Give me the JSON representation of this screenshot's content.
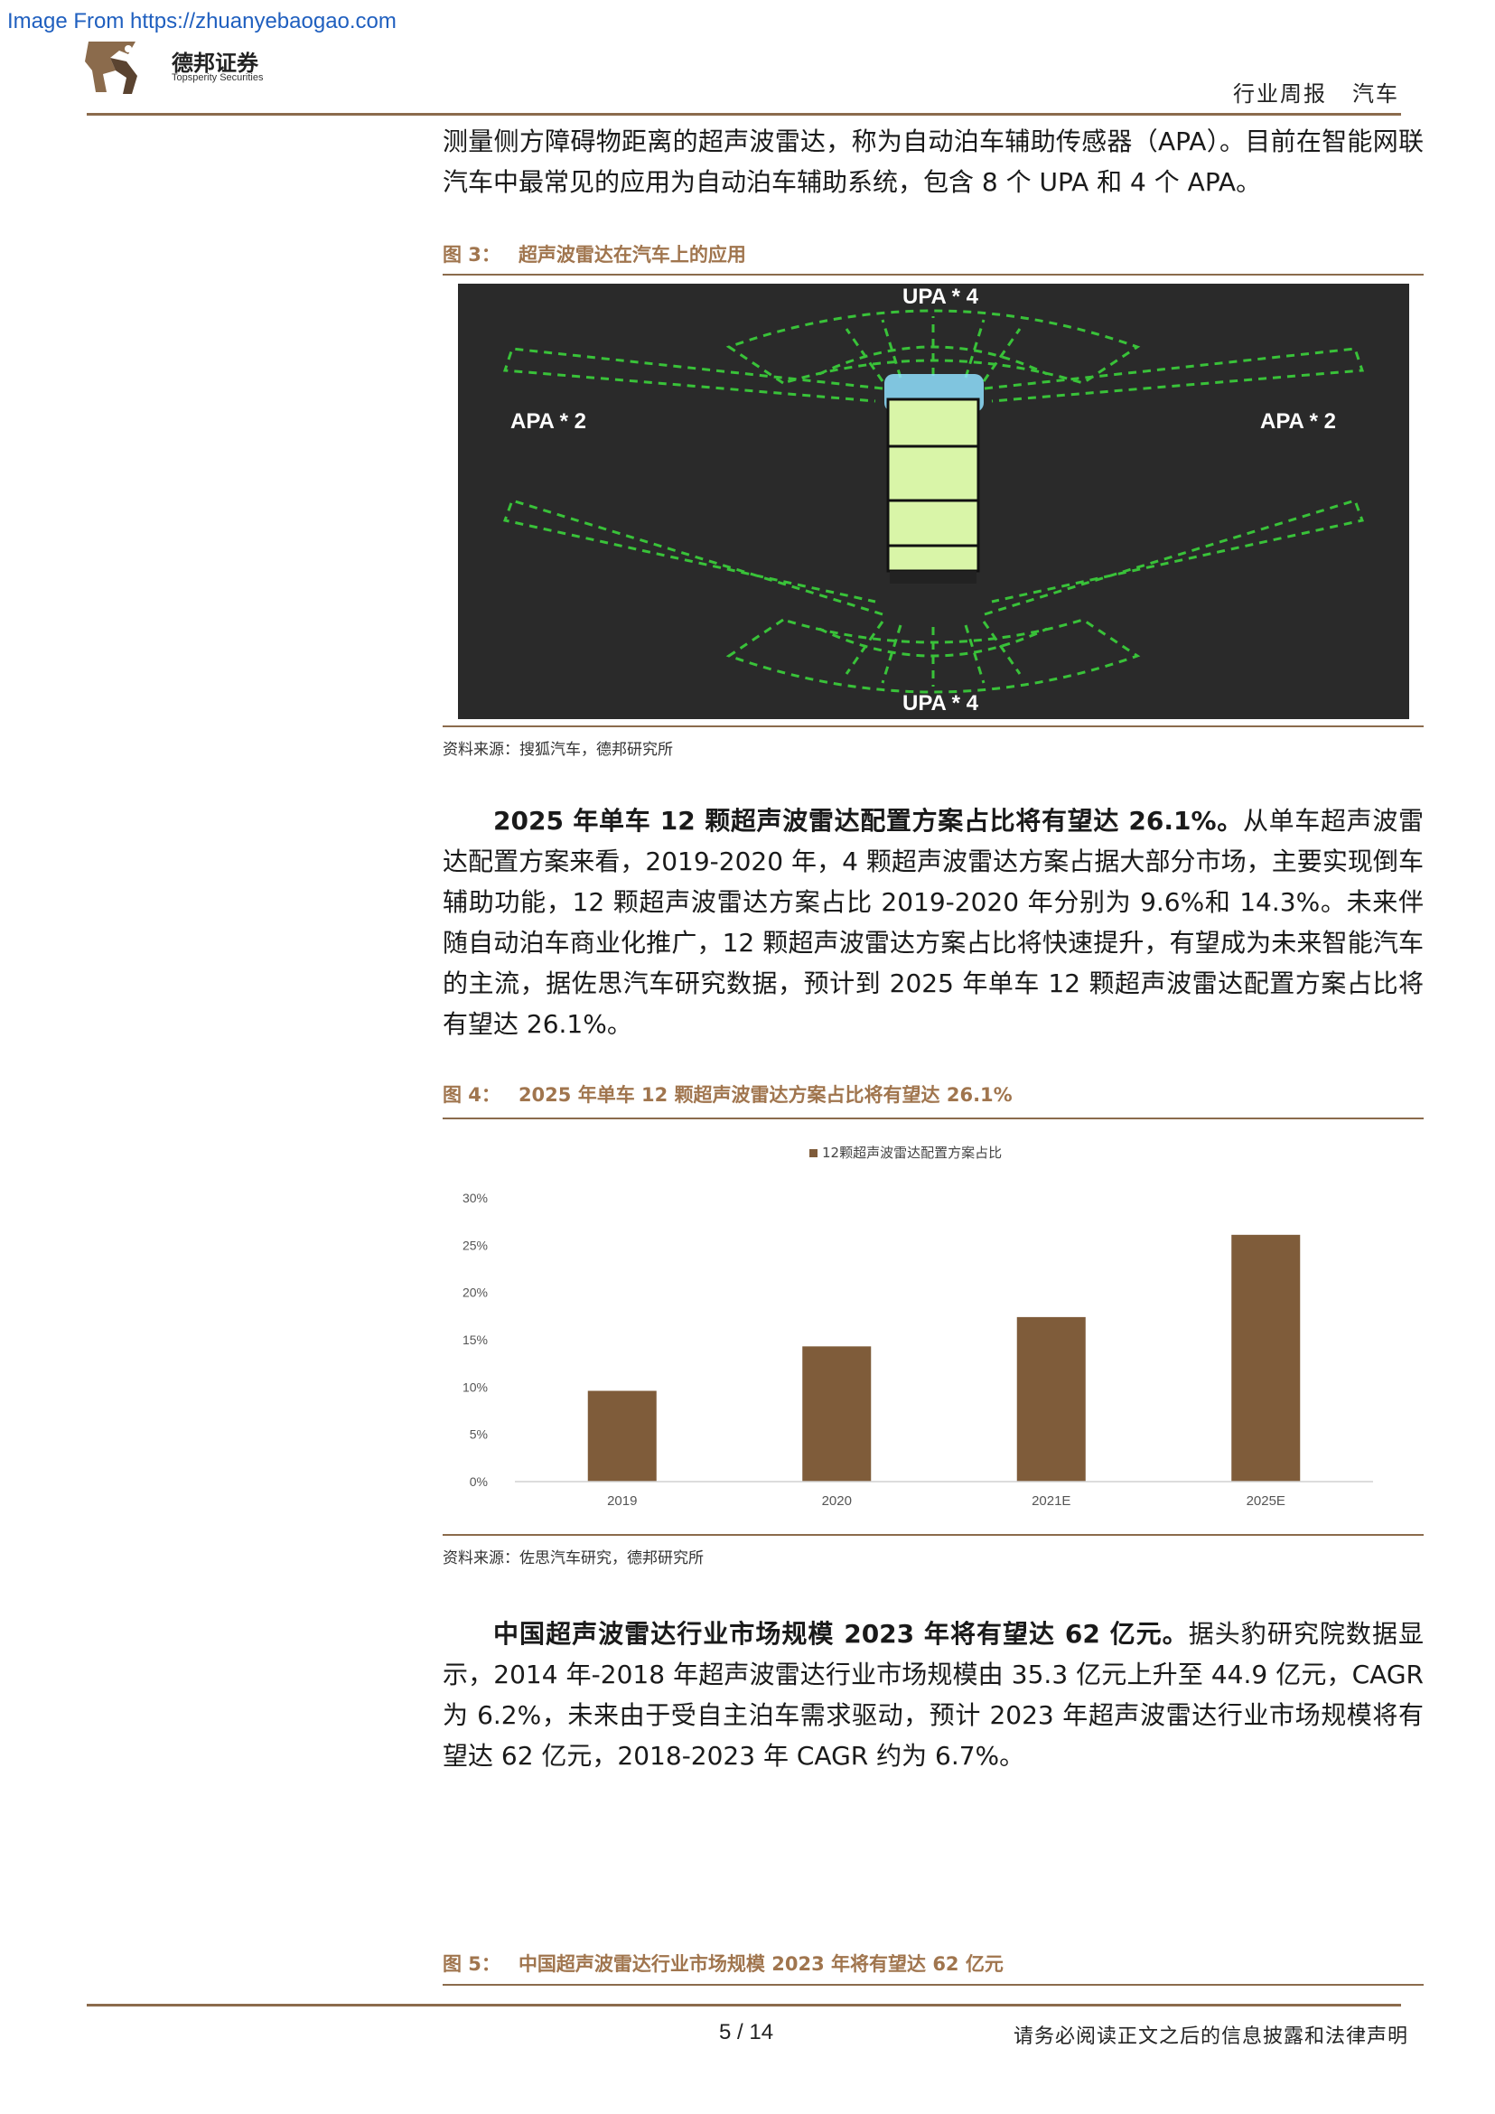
{
  "watermark": "Image From https://zhuanyebaogao.com",
  "brand": {
    "name_cn": "德邦证券",
    "name_en": "Topsperity Securities"
  },
  "header": {
    "category": "行业周报",
    "sector": "汽车"
  },
  "paragraph_intro": "测量侧方障碍物距离的超声波雷达，称为自动泊车辅助传感器（APA）。目前在智能网联汽车中最常见的应用为自动泊车辅助系统，包含 8 个 UPA 和 4 个 APA。",
  "figure3": {
    "number": "图 3：",
    "title": "超声波雷达在汽车上的应用",
    "labels": {
      "top": "UPA * 4",
      "bottom": "UPA * 4",
      "left": "APA * 2",
      "right": "APA * 2"
    },
    "source": "资料来源：搜狐汽车，德邦研究所"
  },
  "paragraph2": {
    "lead": "2025 年单车 12 颗超声波雷达配置方案占比将有望达 26.1%。",
    "body": "从单车超声波雷达配置方案来看，2019-2020 年，4 颗超声波雷达方案占据大部分市场，主要实现倒车辅助功能，12 颗超声波雷达方案占比 2019-2020 年分别为 9.6%和 14.3%。未来伴随自动泊车商业化推广，12 颗超声波雷达方案占比将快速提升，有望成为未来智能汽车的主流，据佐思汽车研究数据，预计到 2025 年单车 12 颗超声波雷达配置方案占比将有望达 26.1%。"
  },
  "figure4": {
    "number": "图 4：",
    "title": "2025 年单车 12 颗超声波雷达方案占比将有望达 26.1%",
    "source": "资料来源：佐思汽车研究，德邦研究所"
  },
  "chart_data": {
    "type": "bar",
    "categories": [
      "2019",
      "2020",
      "2021E",
      "2025E"
    ],
    "series": [
      {
        "name": "12颗超声波雷达配置方案占比",
        "values": [
          9.6,
          14.3,
          17.4,
          26.1
        ]
      }
    ],
    "yticks": [
      "0%",
      "5%",
      "10%",
      "15%",
      "20%",
      "25%",
      "30%"
    ],
    "ylim": [
      0,
      30
    ],
    "legend": "top",
    "grid": false,
    "color": "#7f5c3a"
  },
  "paragraph3": {
    "lead": "中国超声波雷达行业市场规模 2023 年将有望达 62 亿元。",
    "body": "据头豹研究院数据显示，2014 年-2018 年超声波雷达行业市场规模由 35.3 亿元上升至 44.9 亿元，CAGR 为 6.2%，未来由于受自主泊车需求驱动，预计 2023 年超声波雷达行业市场规模将有望达 62 亿元，2018-2023 年 CAGR 约为 6.7%。"
  },
  "figure5": {
    "number": "图 5：",
    "title": "中国超声波雷达行业市场规模 2023 年将有望达 62 亿元"
  },
  "footer": {
    "page": "5 / 14",
    "disclaimer": "请务必阅读正文之后的信息披露和法律声明"
  },
  "colors": {
    "accent": "#8b6b4c",
    "caption": "#a0754e",
    "bar": "#7f5c3a",
    "radar": "#39c239"
  }
}
